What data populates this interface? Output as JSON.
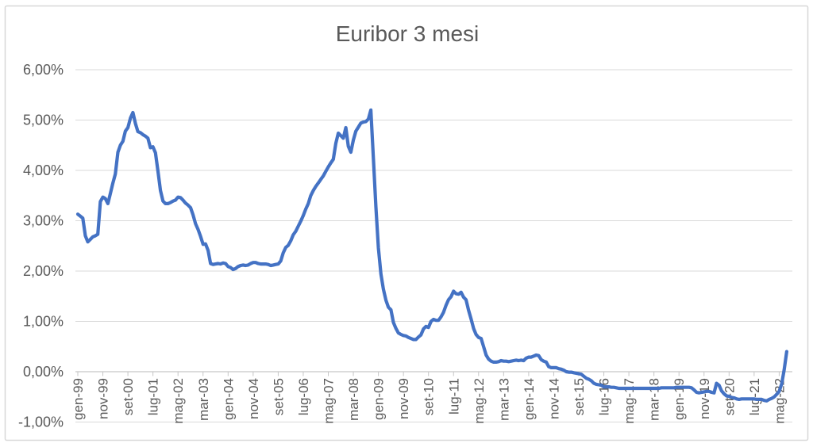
{
  "chart_data": {
    "type": "line",
    "title": "Euribor 3 mesi",
    "series_name": "Euribor 3 mesi",
    "frequency": "monthly",
    "x_start": "gen-99",
    "x_end": "ago-22",
    "x_tick_every": 10,
    "x_tick_labels": [
      "gen-99",
      "nov-99",
      "set-00",
      "lug-01",
      "mag-02",
      "mar-03",
      "gen-04",
      "nov-04",
      "set-05",
      "lug-06",
      "mag-07",
      "mar-08",
      "gen-09",
      "nov-09",
      "set-10",
      "lug-11",
      "mag-12",
      "mar-13",
      "gen-14",
      "nov-14",
      "set-15",
      "lug-16",
      "mag-17",
      "mar-18",
      "gen-19",
      "nov-19",
      "set-20",
      "lug-21",
      "mag-22"
    ],
    "y_tick_labels": [
      "6,00%",
      "5,00%",
      "4,00%",
      "3,00%",
      "2,00%",
      "1,00%",
      "0,00%",
      "-1,00%"
    ],
    "y_tick_values": [
      6,
      5,
      4,
      3,
      2,
      1,
      0,
      -1
    ],
    "ylim": [
      -1,
      6
    ],
    "grid": true,
    "legend": "none",
    "line_color": "#4472C4",
    "axis_text_color": "#595959",
    "gridline_color": "#D9D9D9",
    "axis_line_color": "#C6C6C6",
    "border_color": "#D8D8D8",
    "background": "#FFFFFF",
    "values": [
      3.13,
      3.09,
      3.05,
      2.7,
      2.58,
      2.63,
      2.68,
      2.7,
      2.73,
      3.38,
      3.47,
      3.44,
      3.34,
      3.54,
      3.75,
      3.93,
      4.36,
      4.5,
      4.58,
      4.78,
      4.85,
      5.04,
      5.15,
      4.93,
      4.77,
      4.75,
      4.71,
      4.68,
      4.64,
      4.45,
      4.47,
      4.35,
      3.98,
      3.6,
      3.39,
      3.34,
      3.34,
      3.36,
      3.39,
      3.41,
      3.47,
      3.46,
      3.41,
      3.35,
      3.31,
      3.26,
      3.12,
      2.94,
      2.83,
      2.69,
      2.53,
      2.54,
      2.41,
      2.15,
      2.13,
      2.14,
      2.15,
      2.14,
      2.16,
      2.15,
      2.09,
      2.07,
      2.03,
      2.05,
      2.09,
      2.11,
      2.12,
      2.11,
      2.12,
      2.15,
      2.17,
      2.17,
      2.15,
      2.14,
      2.14,
      2.14,
      2.13,
      2.11,
      2.12,
      2.13,
      2.14,
      2.2,
      2.36,
      2.47,
      2.51,
      2.6,
      2.72,
      2.79,
      2.89,
      2.99,
      3.1,
      3.23,
      3.34,
      3.5,
      3.6,
      3.68,
      3.75,
      3.82,
      3.89,
      3.98,
      4.07,
      4.15,
      4.22,
      4.54,
      4.74,
      4.69,
      4.64,
      4.85,
      4.48,
      4.36,
      4.6,
      4.78,
      4.86,
      4.94,
      4.96,
      4.97,
      5.02,
      5.2,
      4.24,
      3.29,
      2.46,
      1.94,
      1.64,
      1.42,
      1.28,
      1.23,
      0.98,
      0.86,
      0.77,
      0.74,
      0.72,
      0.71,
      0.68,
      0.66,
      0.64,
      0.64,
      0.69,
      0.73,
      0.85,
      0.9,
      0.88,
      1.0,
      1.04,
      1.02,
      1.02,
      1.09,
      1.18,
      1.32,
      1.43,
      1.49,
      1.6,
      1.55,
      1.54,
      1.58,
      1.48,
      1.43,
      1.22,
      1.05,
      0.86,
      0.74,
      0.68,
      0.66,
      0.5,
      0.33,
      0.25,
      0.21,
      0.19,
      0.19,
      0.2,
      0.22,
      0.21,
      0.21,
      0.2,
      0.21,
      0.22,
      0.23,
      0.22,
      0.23,
      0.22,
      0.27,
      0.29,
      0.29,
      0.31,
      0.33,
      0.32,
      0.24,
      0.21,
      0.19,
      0.1,
      0.08,
      0.08,
      0.08,
      0.06,
      0.05,
      0.03,
      0.0,
      -0.01,
      -0.01,
      -0.02,
      -0.03,
      -0.04,
      -0.05,
      -0.09,
      -0.13,
      -0.15,
      -0.18,
      -0.23,
      -0.25,
      -0.26,
      -0.27,
      -0.3,
      -0.3,
      -0.3,
      -0.31,
      -0.31,
      -0.32,
      -0.33,
      -0.33,
      -0.33,
      -0.33,
      -0.33,
      -0.33,
      -0.33,
      -0.33,
      -0.33,
      -0.33,
      -0.33,
      -0.33,
      -0.33,
      -0.33,
      -0.33,
      -0.33,
      -0.33,
      -0.32,
      -0.32,
      -0.32,
      -0.32,
      -0.32,
      -0.32,
      -0.31,
      -0.31,
      -0.31,
      -0.31,
      -0.31,
      -0.31,
      -0.32,
      -0.36,
      -0.41,
      -0.42,
      -0.41,
      -0.4,
      -0.39,
      -0.39,
      -0.41,
      -0.42,
      -0.23,
      -0.27,
      -0.38,
      -0.44,
      -0.48,
      -0.49,
      -0.51,
      -0.52,
      -0.54,
      -0.55,
      -0.54,
      -0.54,
      -0.54,
      -0.54,
      -0.54,
      -0.54,
      -0.55,
      -0.55,
      -0.55,
      -0.57,
      -0.58,
      -0.55,
      -0.53,
      -0.5,
      -0.45,
      -0.39,
      -0.24,
      0.04,
      0.4
    ]
  }
}
